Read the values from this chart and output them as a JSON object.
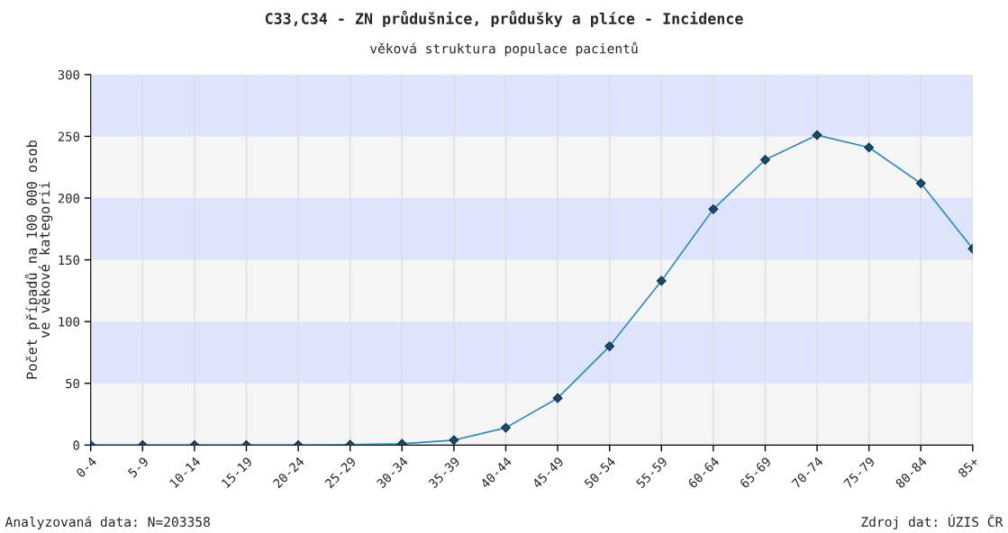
{
  "chart_data": {
    "type": "line",
    "title": "C33,C34 - ZN průdušnice, průdušky a plíce - Incidence",
    "subtitle": "věková struktura populace pacientů",
    "ylabel": "Počet případů na 100 000 osob\nve věkové kategorii",
    "categories": [
      "0-4",
      "5-9",
      "10-14",
      "15-19",
      "20-24",
      "25-29",
      "30-34",
      "35-39",
      "40-44",
      "45-49",
      "50-54",
      "55-59",
      "60-64",
      "65-69",
      "70-74",
      "75-79",
      "80-84",
      "85+"
    ],
    "series": [
      {
        "color": "#2b8cbe",
        "values": [
          0,
          0,
          0,
          0,
          0,
          0.3,
          1,
          4,
          14,
          38,
          80,
          133,
          191,
          231,
          251,
          241,
          212,
          159
        ]
      }
    ],
    "ylim": [
      0,
      300
    ],
    "yticks": [
      0,
      50,
      100,
      150,
      200,
      250,
      300
    ],
    "grid": "x",
    "marker": "diamond",
    "line_style": "solid",
    "legend": false,
    "bands": [
      {
        "axis": "y",
        "from": 50,
        "to": 100,
        "color": "#dde4fb"
      },
      {
        "axis": "y",
        "from": 150,
        "to": 200,
        "color": "#dde4fb"
      },
      {
        "axis": "y",
        "from": 250,
        "to": 300,
        "color": "#dde4fb"
      }
    ],
    "annotations": [
      "Analyzovaná data: N=203358",
      "Zdroj dat: ÚZIS ČR"
    ]
  }
}
